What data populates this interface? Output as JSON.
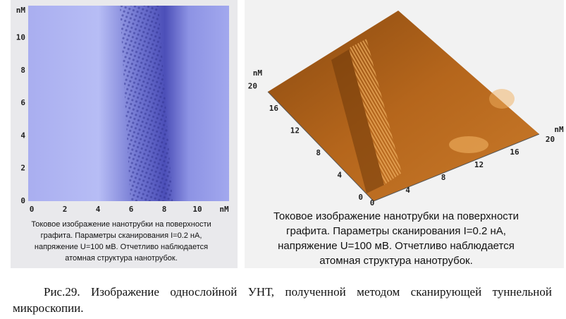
{
  "left_panel": {
    "y_axis": {
      "unit": "nM",
      "ticks": [
        "0",
        "2",
        "4",
        "6",
        "8",
        "10"
      ]
    },
    "x_axis": {
      "unit": "nM",
      "ticks": [
        "0",
        "2",
        "4",
        "6",
        "8",
        "10"
      ]
    },
    "caption_lines": [
      "Токовое изображение нанотрубки  на поверхности",
      "графита. Параметры сканирования I=0.2 нА,",
      "напряжение U=100 мВ. Отчетливо наблюдается",
      "атомная структура нанотрубок."
    ]
  },
  "right_panel": {
    "y_axis": {
      "unit": "nM",
      "ticks": [
        "0",
        "4",
        "8",
        "12",
        "16",
        "20"
      ]
    },
    "x_axis": {
      "unit": "nM",
      "ticks": [
        "0",
        "4",
        "8",
        "12",
        "16",
        "20"
      ]
    },
    "caption_lines": [
      "Токовое изображение нанотрубки на поверхности",
      "графита. Параметры сканирования I=0.2 нА,",
      "напряжение U=100 мВ. Отчетливо наблюдается",
      "атомная структура нанотрубок."
    ]
  },
  "figure_caption": "Рис.29. Изображение однослойной УНТ, полученной методом сканирующей туннельной микроскопии."
}
